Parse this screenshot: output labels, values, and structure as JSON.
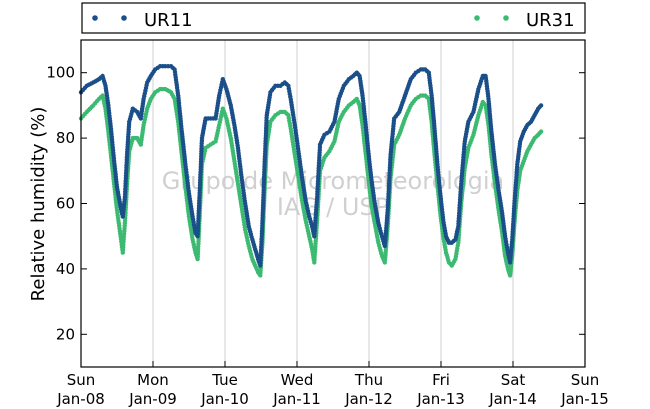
{
  "chart_data": {
    "type": "scatter",
    "ylabel": "Relative humidity (%)",
    "xlabel": "",
    "ylim": [
      10,
      110
    ],
    "xlim": [
      0,
      7
    ],
    "yticks": [
      20,
      40,
      60,
      80,
      100
    ],
    "xticks": [
      {
        "day": "Sun",
        "date": "Jan-08"
      },
      {
        "day": "Mon",
        "date": "Jan-09"
      },
      {
        "day": "Tue",
        "date": "Jan-10"
      },
      {
        "day": "Wed",
        "date": "Jan-11"
      },
      {
        "day": "Thu",
        "date": "Jan-12"
      },
      {
        "day": "Fri",
        "date": "Jan-13"
      },
      {
        "day": "Sat",
        "date": "Jan-14"
      },
      {
        "day": "Sun",
        "date": "Jan-15"
      }
    ],
    "grid": "vertical",
    "legend_position": "top",
    "watermark": [
      "Grupo de Micrometeorologia",
      "IAG / USP"
    ],
    "series": [
      {
        "name": "UR11",
        "color": "#1a4f8a",
        "points": [
          [
            0.0,
            94
          ],
          [
            0.08,
            96
          ],
          [
            0.17,
            97
          ],
          [
            0.25,
            98
          ],
          [
            0.3,
            99
          ],
          [
            0.34,
            96
          ],
          [
            0.38,
            90
          ],
          [
            0.42,
            82
          ],
          [
            0.46,
            73
          ],
          [
            0.5,
            65
          ],
          [
            0.55,
            59
          ],
          [
            0.58,
            56
          ],
          [
            0.61,
            62
          ],
          [
            0.64,
            75
          ],
          [
            0.67,
            85
          ],
          [
            0.72,
            89
          ],
          [
            0.78,
            88
          ],
          [
            0.83,
            86
          ],
          [
            0.87,
            92
          ],
          [
            0.92,
            97
          ],
          [
            0.97,
            99
          ],
          [
            1.03,
            101
          ],
          [
            1.1,
            102
          ],
          [
            1.17,
            102
          ],
          [
            1.25,
            102
          ],
          [
            1.3,
            101
          ],
          [
            1.35,
            93
          ],
          [
            1.4,
            82
          ],
          [
            1.45,
            72
          ],
          [
            1.5,
            63
          ],
          [
            1.55,
            56
          ],
          [
            1.59,
            51
          ],
          [
            1.62,
            50
          ],
          [
            1.65,
            64
          ],
          [
            1.68,
            80
          ],
          [
            1.73,
            86
          ],
          [
            1.8,
            86
          ],
          [
            1.87,
            86
          ],
          [
            1.92,
            93
          ],
          [
            1.97,
            98
          ],
          [
            2.02,
            95
          ],
          [
            2.08,
            90
          ],
          [
            2.13,
            84
          ],
          [
            2.18,
            77
          ],
          [
            2.23,
            68
          ],
          [
            2.28,
            60
          ],
          [
            2.33,
            53
          ],
          [
            2.38,
            49
          ],
          [
            2.42,
            46
          ],
          [
            2.46,
            43
          ],
          [
            2.49,
            41
          ],
          [
            2.52,
            54
          ],
          [
            2.55,
            72
          ],
          [
            2.58,
            87
          ],
          [
            2.63,
            94
          ],
          [
            2.7,
            96
          ],
          [
            2.77,
            96
          ],
          [
            2.83,
            97
          ],
          [
            2.88,
            96
          ],
          [
            2.92,
            91
          ],
          [
            2.97,
            84
          ],
          [
            3.02,
            76
          ],
          [
            3.07,
            68
          ],
          [
            3.12,
            61
          ],
          [
            3.17,
            56
          ],
          [
            3.21,
            53
          ],
          [
            3.24,
            50
          ],
          [
            3.28,
            62
          ],
          [
            3.32,
            78
          ],
          [
            3.38,
            81
          ],
          [
            3.45,
            82
          ],
          [
            3.52,
            85
          ],
          [
            3.58,
            92
          ],
          [
            3.65,
            96
          ],
          [
            3.72,
            98
          ],
          [
            3.78,
            99
          ],
          [
            3.83,
            100
          ],
          [
            3.87,
            99
          ],
          [
            3.91,
            93
          ],
          [
            3.95,
            85
          ],
          [
            3.99,
            76
          ],
          [
            4.03,
            68
          ],
          [
            4.08,
            60
          ],
          [
            4.13,
            54
          ],
          [
            4.18,
            50
          ],
          [
            4.22,
            47
          ],
          [
            4.26,
            58
          ],
          [
            4.3,
            75
          ],
          [
            4.35,
            86
          ],
          [
            4.42,
            88
          ],
          [
            4.5,
            93
          ],
          [
            4.58,
            98
          ],
          [
            4.65,
            100
          ],
          [
            4.72,
            101
          ],
          [
            4.78,
            101
          ],
          [
            4.83,
            100
          ],
          [
            4.87,
            93
          ],
          [
            4.91,
            83
          ],
          [
            4.95,
            72
          ],
          [
            4.99,
            63
          ],
          [
            5.03,
            55
          ],
          [
            5.07,
            50
          ],
          [
            5.11,
            48
          ],
          [
            5.15,
            48
          ],
          [
            5.2,
            49
          ],
          [
            5.24,
            53
          ],
          [
            5.28,
            66
          ],
          [
            5.33,
            79
          ],
          [
            5.38,
            85
          ],
          [
            5.45,
            88
          ],
          [
            5.52,
            95
          ],
          [
            5.58,
            99
          ],
          [
            5.62,
            99
          ],
          [
            5.66,
            92
          ],
          [
            5.7,
            82
          ],
          [
            5.75,
            72
          ],
          [
            5.8,
            64
          ],
          [
            5.85,
            57
          ],
          [
            5.89,
            50
          ],
          [
            5.93,
            45
          ],
          [
            5.96,
            42
          ],
          [
            5.99,
            49
          ],
          [
            6.02,
            60
          ],
          [
            6.06,
            72
          ],
          [
            6.1,
            79
          ],
          [
            6.15,
            82
          ],
          [
            6.2,
            84
          ],
          [
            6.25,
            85
          ],
          [
            6.3,
            87
          ],
          [
            6.35,
            89
          ],
          [
            6.39,
            90
          ]
        ]
      },
      {
        "name": "UR31",
        "color": "#3dba72",
        "points": [
          [
            0.0,
            86
          ],
          [
            0.08,
            88
          ],
          [
            0.17,
            90
          ],
          [
            0.25,
            92
          ],
          [
            0.3,
            93
          ],
          [
            0.34,
            89
          ],
          [
            0.38,
            82
          ],
          [
            0.42,
            74
          ],
          [
            0.46,
            66
          ],
          [
            0.5,
            58
          ],
          [
            0.55,
            50
          ],
          [
            0.58,
            45
          ],
          [
            0.61,
            54
          ],
          [
            0.64,
            66
          ],
          [
            0.67,
            76
          ],
          [
            0.72,
            80
          ],
          [
            0.78,
            80
          ],
          [
            0.83,
            78
          ],
          [
            0.87,
            84
          ],
          [
            0.92,
            89
          ],
          [
            0.97,
            92
          ],
          [
            1.03,
            94
          ],
          [
            1.1,
            95
          ],
          [
            1.17,
            95
          ],
          [
            1.25,
            94
          ],
          [
            1.3,
            92
          ],
          [
            1.35,
            85
          ],
          [
            1.4,
            75
          ],
          [
            1.45,
            65
          ],
          [
            1.5,
            56
          ],
          [
            1.55,
            49
          ],
          [
            1.59,
            45
          ],
          [
            1.62,
            43
          ],
          [
            1.65,
            57
          ],
          [
            1.68,
            72
          ],
          [
            1.73,
            77
          ],
          [
            1.8,
            78
          ],
          [
            1.87,
            79
          ],
          [
            1.92,
            84
          ],
          [
            1.97,
            89
          ],
          [
            2.02,
            86
          ],
          [
            2.08,
            80
          ],
          [
            2.13,
            73
          ],
          [
            2.18,
            66
          ],
          [
            2.23,
            59
          ],
          [
            2.28,
            52
          ],
          [
            2.33,
            47
          ],
          [
            2.38,
            43
          ],
          [
            2.42,
            41
          ],
          [
            2.46,
            39
          ],
          [
            2.49,
            38
          ],
          [
            2.52,
            48
          ],
          [
            2.55,
            64
          ],
          [
            2.58,
            78
          ],
          [
            2.63,
            85
          ],
          [
            2.7,
            87
          ],
          [
            2.77,
            88
          ],
          [
            2.83,
            88
          ],
          [
            2.88,
            87
          ],
          [
            2.92,
            82
          ],
          [
            2.97,
            75
          ],
          [
            3.02,
            68
          ],
          [
            3.07,
            61
          ],
          [
            3.12,
            55
          ],
          [
            3.17,
            50
          ],
          [
            3.21,
            46
          ],
          [
            3.24,
            42
          ],
          [
            3.28,
            55
          ],
          [
            3.32,
            70
          ],
          [
            3.38,
            74
          ],
          [
            3.45,
            76
          ],
          [
            3.52,
            79
          ],
          [
            3.58,
            85
          ],
          [
            3.65,
            88
          ],
          [
            3.72,
            90
          ],
          [
            3.78,
            91
          ],
          [
            3.83,
            92
          ],
          [
            3.87,
            90
          ],
          [
            3.91,
            84
          ],
          [
            3.95,
            76
          ],
          [
            3.99,
            68
          ],
          [
            4.03,
            60
          ],
          [
            4.08,
            54
          ],
          [
            4.13,
            48
          ],
          [
            4.18,
            44
          ],
          [
            4.22,
            42
          ],
          [
            4.26,
            53
          ],
          [
            4.3,
            68
          ],
          [
            4.35,
            78
          ],
          [
            4.42,
            81
          ],
          [
            4.5,
            86
          ],
          [
            4.58,
            90
          ],
          [
            4.65,
            92
          ],
          [
            4.72,
            93
          ],
          [
            4.78,
            93
          ],
          [
            4.83,
            92
          ],
          [
            4.87,
            85
          ],
          [
            4.91,
            75
          ],
          [
            4.95,
            66
          ],
          [
            4.99,
            57
          ],
          [
            5.03,
            50
          ],
          [
            5.07,
            45
          ],
          [
            5.11,
            42
          ],
          [
            5.15,
            41
          ],
          [
            5.2,
            43
          ],
          [
            5.24,
            48
          ],
          [
            5.28,
            60
          ],
          [
            5.33,
            71
          ],
          [
            5.38,
            77
          ],
          [
            5.45,
            81
          ],
          [
            5.52,
            87
          ],
          [
            5.58,
            91
          ],
          [
            5.62,
            90
          ],
          [
            5.66,
            84
          ],
          [
            5.7,
            75
          ],
          [
            5.75,
            66
          ],
          [
            5.8,
            58
          ],
          [
            5.85,
            51
          ],
          [
            5.89,
            44
          ],
          [
            5.93,
            40
          ],
          [
            5.96,
            38
          ],
          [
            5.99,
            44
          ],
          [
            6.02,
            54
          ],
          [
            6.06,
            64
          ],
          [
            6.1,
            70
          ],
          [
            6.15,
            73
          ],
          [
            6.2,
            76
          ],
          [
            6.25,
            78
          ],
          [
            6.3,
            80
          ],
          [
            6.35,
            81
          ],
          [
            6.39,
            82
          ]
        ]
      }
    ]
  }
}
